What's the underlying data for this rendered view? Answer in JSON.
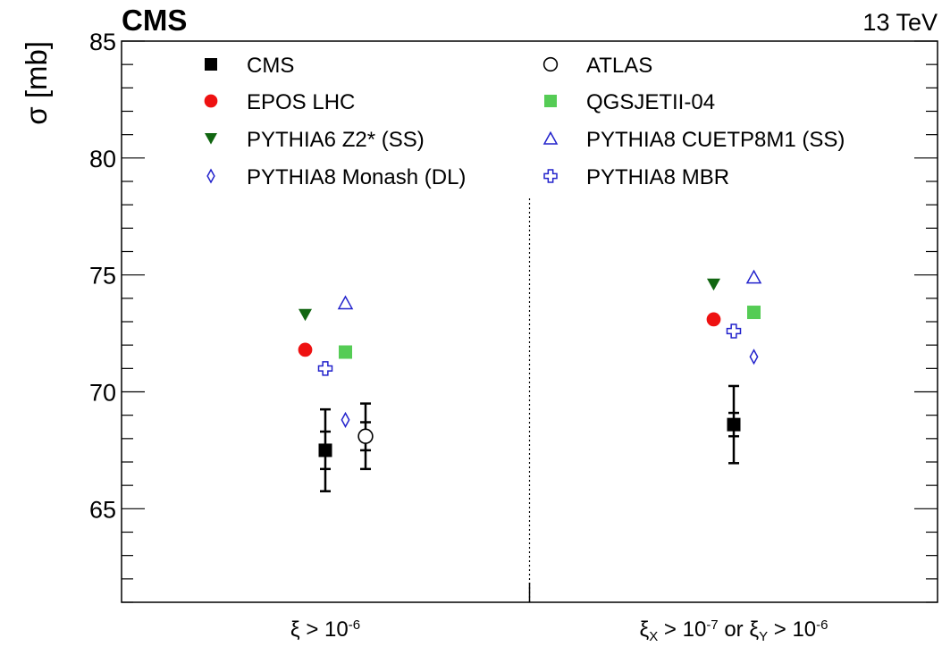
{
  "chart_data": {
    "type": "scatter",
    "experiment": "CMS",
    "energy": "13 TeV",
    "ylabel": "σ [mb]",
    "ylim": [
      61,
      85
    ],
    "yticks": [
      65,
      70,
      75,
      80,
      85
    ],
    "categories": [
      {
        "parts": [
          {
            "t": "ξ > 10"
          },
          {
            "t": "-6",
            "sup": true
          }
        ]
      },
      {
        "parts": [
          {
            "t": "ξ"
          },
          {
            "t": "X",
            "sub": true
          },
          {
            "t": " > 10"
          },
          {
            "t": "-7",
            "sup": true
          },
          {
            "t": " or ξ"
          },
          {
            "t": "Y",
            "sub": true
          },
          {
            "t": " > 10"
          },
          {
            "t": "-6",
            "sup": true
          }
        ]
      }
    ],
    "series": [
      {
        "name": "CMS",
        "marker": "square-filled",
        "color": "#000000",
        "points": [
          {
            "cat": 0,
            "offset": 0.0,
            "y": 67.5,
            "stat": 0.8,
            "total": 1.75
          },
          {
            "cat": 1,
            "offset": 0.0,
            "y": 68.6,
            "stat": 0.5,
            "total": 1.65
          }
        ]
      },
      {
        "name": "ATLAS",
        "marker": "circle-open",
        "color": "#000000",
        "points": [
          {
            "cat": 0,
            "offset": 1.0,
            "y": 68.1,
            "stat": 0.6,
            "total": 1.4
          }
        ]
      },
      {
        "name": "EPOS LHC",
        "marker": "circle-filled",
        "color": "#ee1111",
        "points": [
          {
            "cat": 0,
            "offset": -0.5,
            "y": 71.8
          },
          {
            "cat": 1,
            "offset": -0.5,
            "y": 73.1
          }
        ]
      },
      {
        "name": "QGSJETII-04",
        "marker": "square-filled",
        "color": "#55cc55",
        "points": [
          {
            "cat": 0,
            "offset": 0.5,
            "y": 71.7
          },
          {
            "cat": 1,
            "offset": 0.5,
            "y": 73.4
          }
        ]
      },
      {
        "name": "PYTHIA6 Z2* (SS)",
        "marker": "triangle-down-filled",
        "color": "#116611",
        "points": [
          {
            "cat": 0,
            "offset": -0.5,
            "y": 73.3
          },
          {
            "cat": 1,
            "offset": -0.5,
            "y": 74.6
          }
        ]
      },
      {
        "name": "PYTHIA8 CUETP8M1 (SS)",
        "marker": "triangle-up-open",
        "color": "#2222cc",
        "points": [
          {
            "cat": 0,
            "offset": 0.5,
            "y": 73.8
          },
          {
            "cat": 1,
            "offset": 0.5,
            "y": 74.9
          }
        ]
      },
      {
        "name": "PYTHIA8 Monash (DL)",
        "marker": "diamond-open",
        "color": "#2222cc",
        "points": [
          {
            "cat": 0,
            "offset": 0.5,
            "y": 68.8
          },
          {
            "cat": 1,
            "offset": 0.5,
            "y": 71.5
          }
        ]
      },
      {
        "name": "PYTHIA8 MBR",
        "marker": "cross-open",
        "color": "#2222cc",
        "points": [
          {
            "cat": 0,
            "offset": 0.0,
            "y": 71.0
          },
          {
            "cat": 1,
            "offset": 0.0,
            "y": 72.6
          }
        ]
      }
    ],
    "legend_order": [
      "CMS",
      "ATLAS",
      "EPOS LHC",
      "QGSJETII-04",
      "PYTHIA6 Z2* (SS)",
      "PYTHIA8 CUETP8M1 (SS)",
      "PYTHIA8 Monash (DL)",
      "PYTHIA8 MBR"
    ],
    "legend_placement": "top",
    "separator": "dotted vertical line between categories",
    "grid": false
  }
}
